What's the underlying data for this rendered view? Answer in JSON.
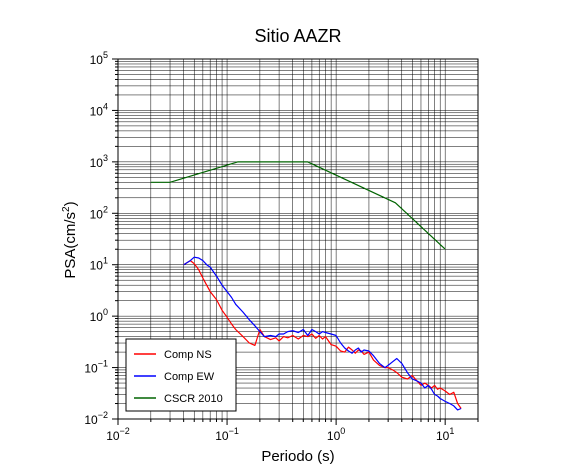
{
  "chart_data": {
    "type": "line",
    "title": "Sitio AAZR",
    "xlabel": "Periodo (s)",
    "ylabel": {
      "prefix": "PSA(cm/s",
      "sup": "2",
      "suffix": ")"
    },
    "x_scale": "log",
    "y_scale": "log",
    "xlim": [
      0.01,
      20
    ],
    "ylim": [
      0.01,
      100000
    ],
    "x_ticks": [
      {
        "value": 0.01,
        "base": "10",
        "exp": "−2"
      },
      {
        "value": 0.1,
        "base": "10",
        "exp": "−1"
      },
      {
        "value": 1,
        "base": "10",
        "exp": "0"
      },
      {
        "value": 10,
        "base": "10",
        "exp": "1"
      }
    ],
    "y_ticks": [
      {
        "value": 0.01,
        "base": "10",
        "exp": "−2"
      },
      {
        "value": 0.1,
        "base": "10",
        "exp": "−1"
      },
      {
        "value": 1,
        "base": "10",
        "exp": "0"
      },
      {
        "value": 10,
        "base": "10",
        "exp": "1"
      },
      {
        "value": 100,
        "base": "10",
        "exp": "2"
      },
      {
        "value": 1000,
        "base": "10",
        "exp": "3"
      },
      {
        "value": 10000,
        "base": "10",
        "exp": "4"
      },
      {
        "value": 100000,
        "base": "10",
        "exp": "5"
      }
    ],
    "grid": true,
    "legend_position": "bottom-left",
    "series": [
      {
        "name": "Comp NS",
        "color": "#ff0000",
        "x": [
          0.04,
          0.046,
          0.05,
          0.055,
          0.06,
          0.065,
          0.07,
          0.08,
          0.09,
          0.1,
          0.11,
          0.12,
          0.14,
          0.16,
          0.18,
          0.2,
          0.22,
          0.25,
          0.28,
          0.3,
          0.33,
          0.36,
          0.4,
          0.45,
          0.5,
          0.55,
          0.6,
          0.65,
          0.7,
          0.75,
          0.8,
          0.9,
          1.0,
          1.1,
          1.2,
          1.3,
          1.4,
          1.5,
          1.6,
          1.7,
          1.8,
          2.0,
          2.2,
          2.5,
          2.8,
          3.0,
          3.3,
          3.6,
          4.0,
          4.5,
          5.0,
          5.5,
          6.0,
          6.5,
          7.0,
          7.5,
          8.0,
          8.5,
          9.0,
          10.0,
          11.0,
          12.0,
          13.0,
          14.0
        ],
        "y": [
          10,
          12,
          10.5,
          8,
          5.5,
          4,
          3,
          2.1,
          1.3,
          0.95,
          0.7,
          0.55,
          0.4,
          0.3,
          0.27,
          0.55,
          0.4,
          0.35,
          0.38,
          0.33,
          0.4,
          0.38,
          0.42,
          0.36,
          0.42,
          0.4,
          0.45,
          0.37,
          0.42,
          0.36,
          0.4,
          0.28,
          0.26,
          0.21,
          0.2,
          0.25,
          0.22,
          0.19,
          0.22,
          0.21,
          0.18,
          0.2,
          0.14,
          0.11,
          0.1,
          0.1,
          0.09,
          0.08,
          0.065,
          0.06,
          0.07,
          0.055,
          0.045,
          0.05,
          0.045,
          0.04,
          0.045,
          0.038,
          0.04,
          0.035,
          0.03,
          0.033,
          0.02,
          0.016
        ]
      },
      {
        "name": "Comp EW",
        "color": "#0000ff",
        "x": [
          0.04,
          0.046,
          0.05,
          0.055,
          0.06,
          0.065,
          0.07,
          0.08,
          0.09,
          0.1,
          0.11,
          0.12,
          0.14,
          0.16,
          0.18,
          0.2,
          0.22,
          0.25,
          0.28,
          0.3,
          0.33,
          0.36,
          0.4,
          0.45,
          0.5,
          0.55,
          0.6,
          0.65,
          0.7,
          0.75,
          0.8,
          0.9,
          1.0,
          1.1,
          1.2,
          1.3,
          1.4,
          1.5,
          1.6,
          1.7,
          1.8,
          2.0,
          2.2,
          2.5,
          2.8,
          3.0,
          3.3,
          3.6,
          4.0,
          4.5,
          5.0,
          5.5,
          6.0,
          6.5,
          7.0,
          7.5,
          8.0,
          8.5,
          9.0,
          10.0,
          11.0,
          12.0,
          13.0,
          14.0
        ],
        "y": [
          10,
          12,
          14,
          13.5,
          12,
          10,
          9,
          6,
          4,
          3,
          2.3,
          1.7,
          1.2,
          0.85,
          0.65,
          0.5,
          0.4,
          0.42,
          0.4,
          0.45,
          0.45,
          0.5,
          0.52,
          0.48,
          0.55,
          0.42,
          0.55,
          0.5,
          0.45,
          0.5,
          0.48,
          0.45,
          0.42,
          0.3,
          0.24,
          0.21,
          0.19,
          0.22,
          0.24,
          0.2,
          0.22,
          0.21,
          0.17,
          0.12,
          0.1,
          0.11,
          0.13,
          0.15,
          0.12,
          0.08,
          0.06,
          0.055,
          0.05,
          0.04,
          0.045,
          0.038,
          0.03,
          0.028,
          0.025,
          0.022,
          0.02,
          0.018,
          0.015,
          0.016
        ]
      },
      {
        "name": "CSCR 2010",
        "color": "#006400",
        "x": [
          0.02,
          0.03,
          0.125,
          0.55,
          3.5,
          10
        ],
        "y": [
          400,
          400,
          1000,
          1000,
          160,
          20
        ]
      }
    ]
  }
}
